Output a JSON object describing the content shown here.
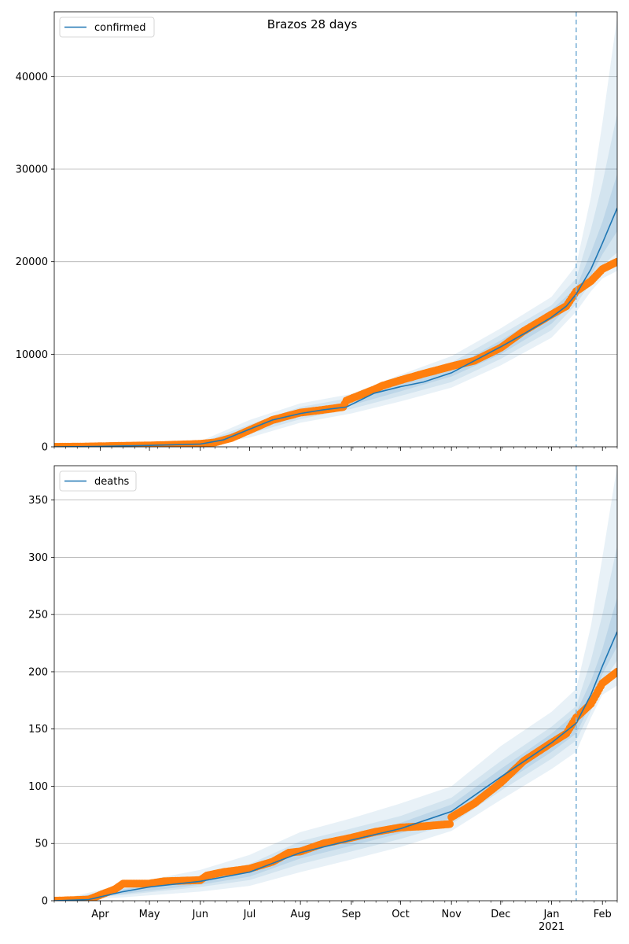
{
  "chart_data": [
    {
      "type": "line",
      "title": "Brazos 28 days",
      "xlabel": "",
      "ylabel": "",
      "legend": {
        "entries": [
          "confirmed"
        ],
        "placement": "top-left"
      },
      "grid": {
        "y": true,
        "x": false
      },
      "x_range": [
        "2020-03-04",
        "2021-02-10"
      ],
      "ylim": [
        0,
        47000
      ],
      "yticks": [
        0,
        10000,
        20000,
        30000,
        40000
      ],
      "forecast_start": "2021-01-16",
      "model": {
        "name": "confirmed",
        "color": "#1f77b4",
        "x": [
          "2020-03-04",
          "2020-04-01",
          "2020-05-01",
          "2020-06-01",
          "2020-06-15",
          "2020-07-01",
          "2020-07-15",
          "2020-08-01",
          "2020-08-15",
          "2020-08-29",
          "2020-09-15",
          "2020-10-01",
          "2020-10-15",
          "2020-11-01",
          "2020-11-15",
          "2020-12-01",
          "2020-12-15",
          "2021-01-01",
          "2021-01-10",
          "2021-01-16",
          "2021-01-25",
          "2021-02-01",
          "2021-02-10"
        ],
        "y": [
          0,
          50,
          150,
          300,
          750,
          1900,
          2900,
          3600,
          4000,
          4300,
          5800,
          6500,
          7000,
          8000,
          9300,
          10800,
          12200,
          14000,
          15200,
          16500,
          19200,
          22000,
          25800
        ]
      },
      "bands": [
        {
          "level": "outer",
          "x": [
            "2020-03-04",
            "2020-06-01",
            "2020-07-01",
            "2020-08-01",
            "2020-09-01",
            "2020-10-01",
            "2020-11-01",
            "2020-12-01",
            "2021-01-01",
            "2021-01-16",
            "2021-01-25",
            "2021-02-01",
            "2021-02-10"
          ],
          "lower": [
            0,
            100,
            1000,
            2600,
            3600,
            4900,
            6400,
            8800,
            11800,
            14600,
            16800,
            18200,
            19000
          ],
          "upper": [
            0,
            600,
            2900,
            4700,
            5700,
            7800,
            9800,
            12800,
            16200,
            19600,
            27000,
            35000,
            46500
          ]
        },
        {
          "level": "middle",
          "x": [
            "2020-03-04",
            "2020-06-01",
            "2020-07-01",
            "2020-08-01",
            "2020-09-01",
            "2020-10-01",
            "2020-11-01",
            "2020-12-01",
            "2021-01-01",
            "2021-01-16",
            "2021-01-25",
            "2021-02-01",
            "2021-02-10"
          ],
          "lower": [
            0,
            200,
            1400,
            3000,
            4100,
            5500,
            7000,
            9500,
            12600,
            15400,
            17800,
            19600,
            21000
          ],
          "upper": [
            0,
            450,
            2400,
            4300,
            5300,
            7200,
            9100,
            12100,
            15300,
            18200,
            23500,
            28500,
            36000
          ]
        },
        {
          "level": "inner",
          "x": [
            "2020-03-04",
            "2020-06-01",
            "2020-07-01",
            "2020-08-01",
            "2020-09-01",
            "2020-10-01",
            "2020-11-01",
            "2020-12-01",
            "2021-01-01",
            "2021-01-16",
            "2021-01-25",
            "2021-02-01",
            "2021-02-10"
          ],
          "lower": [
            0,
            250,
            1700,
            3300,
            4500,
            6000,
            7600,
            10000,
            13300,
            16000,
            18500,
            20800,
            23300
          ],
          "upper": [
            0,
            350,
            2100,
            3900,
            4900,
            6900,
            8500,
            11500,
            14800,
            17200,
            21000,
            24300,
            29500
          ]
        }
      ],
      "observed": {
        "color": "#ff7f0e",
        "x": [
          "2020-03-04",
          "2020-03-20",
          "2020-04-01",
          "2020-04-15",
          "2020-05-01",
          "2020-05-15",
          "2020-06-01",
          "2020-06-10",
          "2020-06-20",
          "2020-07-01",
          "2020-07-15",
          "2020-08-01",
          "2020-08-15",
          "2020-08-27",
          "2020-08-29",
          "2020-09-15",
          "2020-09-20",
          "2020-10-01",
          "2020-10-15",
          "2020-11-01",
          "2020-11-15",
          "2020-12-01",
          "2020-12-15",
          "2021-01-01",
          "2021-01-10",
          "2021-01-16",
          "2021-01-25",
          "2021-02-01",
          "2021-02-10"
        ],
        "y": [
          0,
          20,
          60,
          110,
          150,
          220,
          320,
          480,
          950,
          1800,
          2900,
          3700,
          4000,
          4300,
          5000,
          6200,
          6600,
          7200,
          7900,
          8700,
          9300,
          10700,
          12500,
          14300,
          15200,
          16800,
          17900,
          19200,
          20000
        ]
      }
    },
    {
      "type": "line",
      "title": "",
      "xlabel": "",
      "ylabel": "",
      "legend": {
        "entries": [
          "deaths"
        ],
        "placement": "top-left"
      },
      "grid": {
        "y": true,
        "x": false
      },
      "x_range": [
        "2020-03-04",
        "2021-02-10"
      ],
      "ylim": [
        0,
        380
      ],
      "yticks": [
        0,
        50,
        100,
        150,
        200,
        250,
        300,
        350
      ],
      "xticks": [
        "Apr",
        "May",
        "Jun",
        "Jul",
        "Aug",
        "Sep",
        "Oct",
        "Nov",
        "Dec",
        "Jan",
        "Feb"
      ],
      "xtick_dates": [
        "2020-04-01",
        "2020-05-01",
        "2020-06-01",
        "2020-07-01",
        "2020-08-01",
        "2020-09-01",
        "2020-10-01",
        "2020-11-01",
        "2020-12-01",
        "2021-01-01",
        "2021-02-01"
      ],
      "year_label": "2021",
      "forecast_start": "2021-01-16",
      "model": {
        "name": "deaths",
        "color": "#1f77b4",
        "x": [
          "2020-03-04",
          "2020-03-25",
          "2020-04-15",
          "2020-05-01",
          "2020-06-01",
          "2020-07-01",
          "2020-08-01",
          "2020-09-01",
          "2020-10-01",
          "2020-11-01",
          "2020-12-01",
          "2021-01-01",
          "2021-01-16",
          "2021-01-25",
          "2021-02-01",
          "2021-02-10"
        ],
        "y": [
          0,
          1,
          8,
          12,
          17,
          25,
          42,
          53,
          63,
          78,
          108,
          138,
          155,
          180,
          205,
          235
        ]
      },
      "bands": [
        {
          "level": "outer",
          "x": [
            "2020-03-04",
            "2020-04-15",
            "2020-06-01",
            "2020-07-01",
            "2020-08-01",
            "2020-09-01",
            "2020-10-01",
            "2020-11-01",
            "2020-12-01",
            "2021-01-01",
            "2021-01-16",
            "2021-01-25",
            "2021-02-01",
            "2021-02-10"
          ],
          "lower": [
            0,
            3,
            8,
            13,
            25,
            36,
            47,
            61,
            88,
            115,
            130,
            160,
            180,
            188
          ],
          "upper": [
            0,
            14,
            27,
            40,
            60,
            72,
            85,
            100,
            135,
            165,
            185,
            240,
            300,
            380
          ]
        },
        {
          "level": "middle",
          "x": [
            "2020-03-04",
            "2020-04-15",
            "2020-06-01",
            "2020-07-01",
            "2020-08-01",
            "2020-09-01",
            "2020-10-01",
            "2020-11-01",
            "2020-12-01",
            "2021-01-01",
            "2021-01-16",
            "2021-01-25",
            "2021-02-01",
            "2021-02-10"
          ],
          "lower": [
            0,
            5,
            12,
            18,
            32,
            43,
            54,
            67,
            96,
            124,
            140,
            166,
            190,
            210
          ],
          "upper": [
            0,
            11,
            22,
            32,
            52,
            63,
            74,
            90,
            122,
            152,
            170,
            210,
            250,
            310
          ]
        },
        {
          "level": "inner",
          "x": [
            "2020-03-04",
            "2020-04-15",
            "2020-06-01",
            "2020-07-01",
            "2020-08-01",
            "2020-09-01",
            "2020-10-01",
            "2020-11-01",
            "2020-12-01",
            "2021-01-01",
            "2021-01-16",
            "2021-01-25",
            "2021-02-01",
            "2021-02-10"
          ],
          "lower": [
            0,
            6,
            14,
            21,
            37,
            48,
            59,
            72,
            101,
            130,
            146,
            172,
            198,
            222
          ],
          "upper": [
            0,
            10,
            19,
            28,
            47,
            58,
            68,
            84,
            115,
            146,
            164,
            192,
            220,
            265
          ]
        }
      ],
      "observed": {
        "color": "#ff7f0e",
        "x": [
          "2020-03-04",
          "2020-03-25",
          "2020-04-01",
          "2020-04-10",
          "2020-04-15",
          "2020-05-01",
          "2020-05-10",
          "2020-06-01",
          "2020-06-05",
          "2020-06-15",
          "2020-07-01",
          "2020-07-15",
          "2020-07-25",
          "2020-08-01",
          "2020-08-15",
          "2020-09-01",
          "2020-09-15",
          "2020-10-01",
          "2020-10-15",
          "2020-10-31",
          "2020-11-01",
          "2020-11-15",
          "2020-12-01",
          "2020-12-15",
          "2021-01-01",
          "2021-01-10",
          "2021-01-16",
          "2021-01-25",
          "2021-02-01",
          "2021-02-10"
        ],
        "y": [
          0,
          1,
          5,
          10,
          15,
          15,
          17,
          18,
          22,
          25,
          28,
          34,
          42,
          43,
          50,
          55,
          60,
          64,
          65,
          67,
          73,
          85,
          103,
          122,
          138,
          146,
          160,
          172,
          190,
          200
        ]
      }
    }
  ]
}
